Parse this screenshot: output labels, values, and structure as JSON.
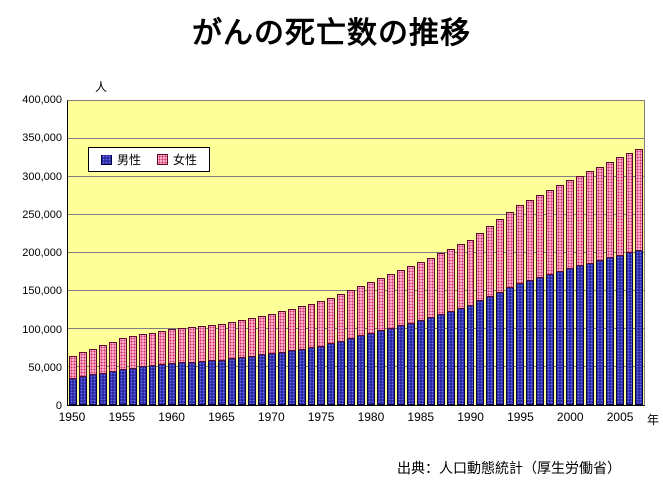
{
  "title": "がんの死亡数の推移",
  "y_axis_unit": "人",
  "x_axis_unit": "年",
  "source": "出典：人口動態統計（厚生労働省）",
  "colors": {
    "male": "#2b2b9e",
    "female": "#ffaec9",
    "plot_background": "#ffff99"
  },
  "chart_data": {
    "type": "bar",
    "stacked": true,
    "title": "がんの死亡数の推移",
    "ylabel": "人",
    "xlabel": "年",
    "ylim": [
      0,
      400000
    ],
    "yticks": [
      0,
      50000,
      100000,
      150000,
      200000,
      250000,
      300000,
      350000,
      400000
    ],
    "xticks": [
      1950,
      1955,
      1960,
      1965,
      1970,
      1975,
      1980,
      1985,
      1990,
      1995,
      2000,
      2005
    ],
    "grid": true,
    "legend_position": "top-left-inside",
    "x": [
      1950,
      1951,
      1952,
      1953,
      1954,
      1955,
      1956,
      1957,
      1958,
      1959,
      1960,
      1961,
      1962,
      1963,
      1964,
      1965,
      1966,
      1967,
      1968,
      1969,
      1970,
      1971,
      1972,
      1973,
      1974,
      1975,
      1976,
      1977,
      1978,
      1979,
      1980,
      1981,
      1982,
      1983,
      1984,
      1985,
      1986,
      1987,
      1988,
      1989,
      1990,
      1991,
      1992,
      1993,
      1994,
      1995,
      1996,
      1997,
      1998,
      1999,
      2000,
      2001,
      2002,
      2003,
      2004,
      2005,
      2006,
      2007
    ],
    "series": [
      {
        "name": "男性",
        "values": [
          33877,
          36402,
          38926,
          41451,
          43975,
          46500,
          48000,
          49500,
          51000,
          52500,
          54000,
          54900,
          55800,
          56700,
          57600,
          58500,
          60215,
          61930,
          63644,
          65359,
          67074,
          69044,
          71013,
          72983,
          74952,
          76922,
          80238,
          83554,
          86869,
          90185,
          93501,
          96933,
          100365,
          103797,
          107228,
          110660,
          114607,
          118554,
          122501,
          126448,
          130395,
          136241,
          142086,
          147932,
          153777,
          159623,
          163526,
          167430,
          171333,
          175237,
          179140,
          182633,
          186125,
          189618,
          193110,
          196603,
          199673,
          202743
        ]
      },
      {
        "name": "女性",
        "values": [
          30551,
          32720,
          34889,
          37057,
          39226,
          41395,
          42392,
          43389,
          44386,
          45383,
          46380,
          46711,
          47042,
          47374,
          47705,
          48036,
          49009,
          49983,
          50956,
          51930,
          52903,
          54215,
          55526,
          56838,
          58149,
          59461,
          61221,
          62982,
          64742,
          66503,
          68263,
          70021,
          71779,
          73538,
          75296,
          77054,
          79047,
          81040,
          83032,
          85025,
          87018,
          90294,
          93570,
          96847,
          100123,
          103399,
          105988,
          108577,
          111166,
          113755,
          116344,
          118943,
          121542,
          124140,
          126739,
          129338,
          131532,
          133725
        ]
      }
    ]
  }
}
